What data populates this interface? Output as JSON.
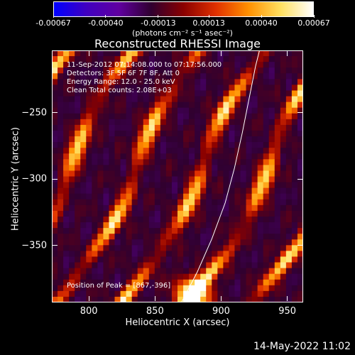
{
  "chart_data": {
    "type": "heatmap",
    "title": "Reconstructed RHESSI Image",
    "xlabel": "Heliocentric X (arcsec)",
    "ylabel": "Heliocentric Y (arcsec)",
    "xlim": [
      772,
      962
    ],
    "ylim": [
      -393,
      -203
    ],
    "x_ticks": [
      800,
      850,
      900,
      950
    ],
    "y_ticks": [
      -250,
      -300,
      -350
    ],
    "colorbar": {
      "ticks": [
        -0.00067,
        -0.0004,
        -0.00013,
        0.00013,
        0.0004,
        0.00067
      ],
      "tick_labels": [
        "-0.00067",
        "-0.00040",
        "-0.00013",
        "0.00013",
        "0.00040",
        "0.00067"
      ],
      "units": "(photons cm⁻² s⁻¹ asec⁻²)",
      "colormap": [
        "#0000ff",
        "#4000c0",
        "#6000a0",
        "#300030",
        "#8a0000",
        "#e03000",
        "#ff9000",
        "#ffe060",
        "#ffffff"
      ]
    },
    "annotations": [
      "11-Sep-2012 07:14:08.000 to 07:17:56.000",
      "Detectors: 3F 5F 6F 7F 8F, Att 0",
      "Energy Range: 12.0 - 25.0 keV",
      "Clean    Total counts: 2.08E+03"
    ],
    "peak_label": "Position of Peak = [867,-396]",
    "peak": [
      867,
      -396
    ],
    "limb_curve": [
      [
        870,
        -393
      ],
      [
        882,
        -370
      ],
      [
        893,
        -345
      ],
      [
        903,
        -318
      ],
      [
        910,
        -292
      ],
      [
        916,
        -265
      ],
      [
        921,
        -240
      ],
      [
        926,
        -215
      ],
      [
        929,
        -203
      ]
    ]
  },
  "footer": {
    "date": "14-May-2022 11:02"
  }
}
